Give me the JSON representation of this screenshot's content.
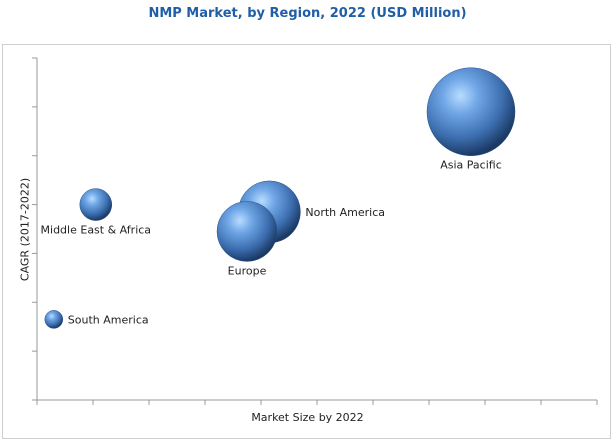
{
  "chart_data": {
    "type": "scatter",
    "title": "NMP Market, by Region, 2022 (USD Million)",
    "xlabel": "Market Size by 2022",
    "ylabel": "CAGR (2017-2022)",
    "xlim": [
      0,
      10
    ],
    "ylim": [
      0,
      7
    ],
    "x_ticks": 10,
    "y_ticks": 7,
    "grid": false,
    "bubble_color": "#3d6fb0",
    "points": [
      {
        "label": "Asia Pacific",
        "x": 7.75,
        "y": 5.9,
        "size": 44,
        "label_pos": "below"
      },
      {
        "label": "North America",
        "x": 4.15,
        "y": 3.85,
        "size": 31,
        "label_pos": "right"
      },
      {
        "label": "Europe",
        "x": 3.75,
        "y": 3.45,
        "size": 30,
        "label_pos": "below"
      },
      {
        "label": "Middle East & Africa",
        "x": 1.05,
        "y": 4.0,
        "size": 16,
        "label_pos": "below"
      },
      {
        "label": "South America",
        "x": 0.3,
        "y": 1.65,
        "size": 9,
        "label_pos": "right"
      }
    ]
  }
}
